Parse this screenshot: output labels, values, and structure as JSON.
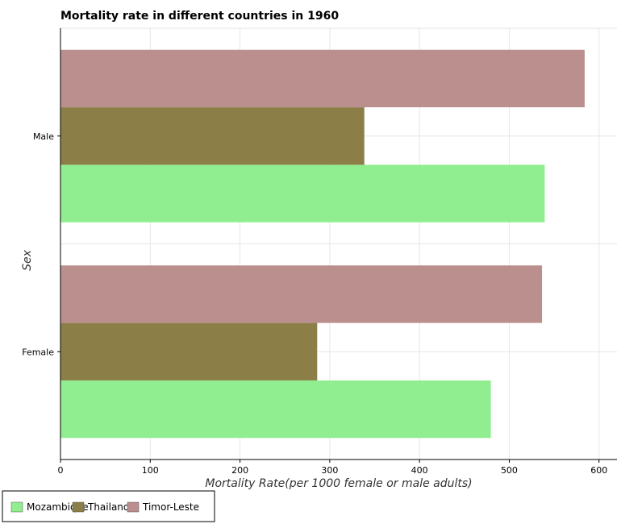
{
  "chart_data": {
    "type": "bar",
    "orientation": "horizontal",
    "title": "Mortality rate in different countries in 1960",
    "xlabel": "Mortality Rate(per 1000 female or male adults)",
    "ylabel": "Sex",
    "categories": [
      "Female",
      "Male"
    ],
    "xlim": [
      0,
      620
    ],
    "xticks": [
      0,
      100,
      200,
      300,
      400,
      500,
      600
    ],
    "grid": true,
    "legend_position": "bottom-left",
    "series": [
      {
        "name": "Mozambique",
        "color": "#90ee90",
        "values": [
          479.5,
          539.5
        ]
      },
      {
        "name": "Thailand",
        "color": "#8b7f47",
        "values": [
          286.0,
          338.5
        ]
      },
      {
        "name": "Timor-Leste",
        "color": "#bc8f8f",
        "values": [
          536.5,
          584.0
        ]
      }
    ]
  }
}
